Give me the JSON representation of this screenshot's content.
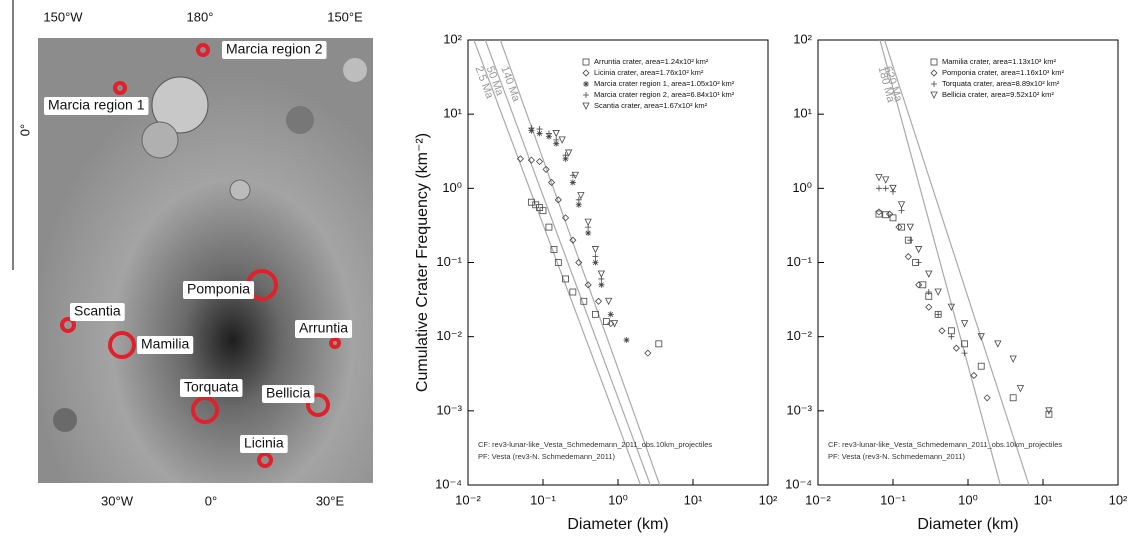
{
  "map": {
    "top_labels": [
      "150°W",
      "180°",
      "150°E"
    ],
    "bottom_labels": [
      "30°W",
      "0°",
      "30°E"
    ],
    "left_label": "0°",
    "regions": [
      "Marcia region 2",
      "Marcia region 1",
      "Pomponia",
      "Scantia",
      "Mamilia",
      "Arruntia",
      "Torquata",
      "Bellicia",
      "Licinia"
    ]
  },
  "chart_data": [
    {
      "type": "scatter",
      "x_label": "Diameter (km)",
      "y_label": "Cumulative Crater Frequency (km⁻²)",
      "log_x": true,
      "log_y": true,
      "xlim": [
        0.01,
        100
      ],
      "ylim": [
        0.0001,
        100
      ],
      "xticks": [
        {
          "value": 0.01,
          "label": "10⁻²"
        },
        {
          "value": 0.1,
          "label": "10⁻¹"
        },
        {
          "value": 1,
          "label": "10⁰"
        },
        {
          "value": 10,
          "label": "10¹"
        },
        {
          "value": 100,
          "label": "10²"
        }
      ],
      "yticks": [
        {
          "value": 0.0001,
          "label": "10⁻⁴"
        },
        {
          "value": 0.001,
          "label": "10⁻³"
        },
        {
          "value": 0.01,
          "label": "10⁻²"
        },
        {
          "value": 0.1,
          "label": "10⁻¹"
        },
        {
          "value": 1,
          "label": "10⁰"
        },
        {
          "value": 10,
          "label": "10¹"
        },
        {
          "value": 100,
          "label": "10²"
        }
      ],
      "series": [
        {
          "name": "Arruntia crater, area=1.24x10² km²",
          "marker": "square",
          "color": "#444444",
          "x": [
            0.07,
            0.08,
            0.09,
            0.1,
            0.12,
            0.14,
            0.16,
            0.2,
            0.25,
            0.35,
            0.5,
            0.7,
            3.5
          ],
          "values": [
            0.65,
            0.6,
            0.55,
            0.5,
            0.3,
            0.15,
            0.1,
            0.06,
            0.04,
            0.03,
            0.02,
            0.016,
            0.008
          ]
        },
        {
          "name": "Licinia crater, area=1.76x10² km²",
          "marker": "diamond",
          "color": "#444444",
          "x": [
            0.05,
            0.07,
            0.09,
            0.11,
            0.13,
            0.16,
            0.2,
            0.25,
            0.3,
            0.4,
            0.55,
            0.8,
            2.5
          ],
          "values": [
            2.5,
            2.4,
            2.3,
            1.8,
            1.2,
            0.7,
            0.4,
            0.2,
            0.1,
            0.05,
            0.03,
            0.015,
            0.006
          ]
        },
        {
          "name": "Marcia crater region 1, area=1.05x10² km²",
          "marker": "asterisk",
          "color": "#444444",
          "x": [
            0.07,
            0.09,
            0.12,
            0.15,
            0.2,
            0.25,
            0.3,
            0.4,
            0.5,
            0.6,
            0.8,
            1.3
          ],
          "values": [
            6,
            5.5,
            5,
            4,
            2.5,
            1.2,
            0.6,
            0.25,
            0.1,
            0.05,
            0.02,
            0.009
          ]
        },
        {
          "name": "Marcia crater region 2, area=6.84x10¹ km²",
          "marker": "plus",
          "color": "#444444",
          "x": [
            0.07,
            0.09,
            0.12,
            0.15,
            0.2,
            0.25,
            0.3,
            0.4,
            0.5,
            0.6
          ],
          "values": [
            6.5,
            6.3,
            5.5,
            4.5,
            2.8,
            1.5,
            0.7,
            0.3,
            0.12,
            0.06
          ]
        },
        {
          "name": "Scantia crater, area=1.67x10² km²",
          "marker": "triangle-down",
          "color": "#444444",
          "x": [
            0.15,
            0.18,
            0.22,
            0.27,
            0.32,
            0.4,
            0.5,
            0.6,
            0.75,
            0.9
          ],
          "values": [
            5.5,
            4.5,
            3,
            1.5,
            0.8,
            0.35,
            0.15,
            0.07,
            0.03,
            0.015
          ]
        }
      ],
      "isochrons": [
        {
          "label": "2.5 Ma",
          "x": [
            0.012,
            2.0
          ],
          "y": [
            100,
            0.0001
          ]
        },
        {
          "label": "50 Ma",
          "x": [
            0.017,
            2.7
          ],
          "y": [
            100,
            0.0001
          ]
        },
        {
          "label": "140 Ma",
          "x": [
            0.027,
            3.6
          ],
          "y": [
            100,
            0.0001
          ]
        }
      ],
      "annotations": [
        "CF: rev3-lunar-like_Vesta_Schmedemann_2011_obs.10km_projectiles",
        "PF: Vesta (rev3-N. Schmedemann_2011)"
      ]
    },
    {
      "type": "scatter",
      "x_label": "Diameter (km)",
      "log_x": true,
      "log_y": true,
      "xlim": [
        0.01,
        100
      ],
      "ylim": [
        0.0001,
        100
      ],
      "xticks": [
        {
          "value": 0.01,
          "label": "10⁻²"
        },
        {
          "value": 0.1,
          "label": "10⁻¹"
        },
        {
          "value": 1,
          "label": "10⁰"
        },
        {
          "value": 10,
          "label": "10¹"
        },
        {
          "value": 100,
          "label": "10²"
        }
      ],
      "yticks": [
        {
          "value": 0.0001,
          "label": "10⁻⁴"
        },
        {
          "value": 0.001,
          "label": "10⁻³"
        },
        {
          "value": 0.01,
          "label": "10⁻²"
        },
        {
          "value": 0.1,
          "label": "10⁻¹"
        },
        {
          "value": 1,
          "label": "10⁰"
        },
        {
          "value": 10,
          "label": "10¹"
        },
        {
          "value": 100,
          "label": "10²"
        }
      ],
      "series": [
        {
          "name": "Mamilia crater, area=1.13x10³ km²",
          "marker": "square",
          "color": "#444444",
          "x": [
            0.065,
            0.08,
            0.1,
            0.13,
            0.16,
            0.2,
            0.25,
            0.3,
            0.4,
            0.6,
            0.9,
            1.5,
            4,
            12
          ],
          "values": [
            0.45,
            0.44,
            0.4,
            0.3,
            0.2,
            0.1,
            0.05,
            0.035,
            0.02,
            0.012,
            0.008,
            0.004,
            0.0015,
            0.0009
          ]
        },
        {
          "name": "Pomponia crater, area=1.16x10³ km²",
          "marker": "diamond",
          "color": "#444444",
          "x": [
            0.065,
            0.09,
            0.12,
            0.16,
            0.22,
            0.3,
            0.45,
            0.7,
            1.2,
            1.8
          ],
          "values": [
            0.48,
            0.45,
            0.3,
            0.12,
            0.05,
            0.025,
            0.012,
            0.007,
            0.003,
            0.0015
          ]
        },
        {
          "name": "Torquata crater, area=8.89x10² km²",
          "marker": "plus",
          "color": "#444444",
          "x": [
            0.065,
            0.08,
            0.1,
            0.13,
            0.17,
            0.22,
            0.3,
            0.4,
            0.6,
            0.9
          ],
          "values": [
            1,
            1,
            0.9,
            0.5,
            0.2,
            0.1,
            0.04,
            0.02,
            0.01,
            0.006
          ]
        },
        {
          "name": "Bellicia crater, area=9.52x10² km²",
          "marker": "triangle-down",
          "color": "#444444",
          "x": [
            0.065,
            0.08,
            0.1,
            0.13,
            0.17,
            0.22,
            0.3,
            0.4,
            0.6,
            0.9,
            1.5,
            2.5,
            4,
            5,
            12
          ],
          "values": [
            1.4,
            1.3,
            1,
            0.6,
            0.3,
            0.15,
            0.07,
            0.04,
            0.025,
            0.015,
            0.01,
            0.008,
            0.005,
            0.002,
            0.001
          ]
        }
      ],
      "isochrons": [
        {
          "label": "180 Ma",
          "x": [
            0.067,
            2.7
          ],
          "y": [
            100,
            0.0001
          ]
        },
        {
          "label": "620 Ma",
          "x": [
            0.077,
            6.5
          ],
          "y": [
            100,
            0.0001
          ]
        }
      ],
      "annotations": [
        "CF: rev3-lunar-like_Vesta_Schmedemann_2011_obs.10km_projectiles",
        "PF: Vesta (rev3-N. Schmedemann_2011)"
      ]
    }
  ]
}
